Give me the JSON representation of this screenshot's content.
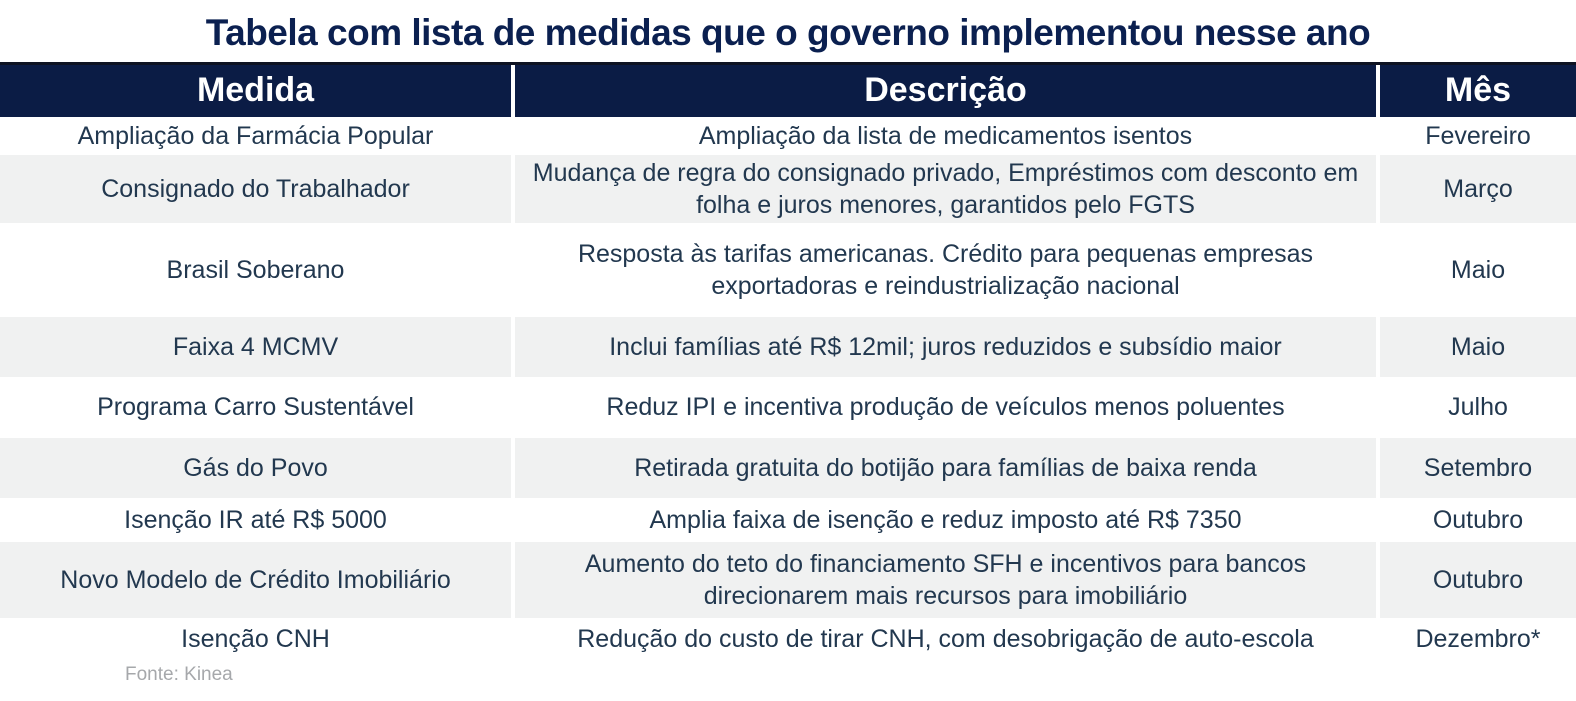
{
  "title": "Tabela com lista de medidas que o governo implementou nesse ano",
  "source": "Fonte: Kinea",
  "colors": {
    "header_bg": "#0B1C45",
    "header_text": "#FFFFFF",
    "row_alt_bg": "#F0F1F1",
    "body_text": "#22384F",
    "title_text": "#0B2050",
    "source_text": "#A6A8AB",
    "top_border": "#0E1322"
  },
  "table": {
    "columns": [
      {
        "key": "medida",
        "label": "Medida"
      },
      {
        "key": "descricao",
        "label": "Descrição"
      },
      {
        "key": "mes",
        "label": "Mês"
      }
    ],
    "rows": [
      {
        "medida": "Ampliação da Farmácia Popular",
        "descricao": "Ampliação da lista de medicamentos isentos",
        "mes": "Fevereiro"
      },
      {
        "medida": "Consignado do Trabalhador",
        "descricao": "Mudança de regra do consignado privado, Empréstimos com desconto em folha e juros menores, garantidos pelo FGTS",
        "mes": "Março"
      },
      {
        "medida": "Brasil Soberano",
        "descricao": "Resposta às tarifas americanas. Crédito para pequenas empresas exportadoras e reindustrialização nacional",
        "mes": "Maio"
      },
      {
        "medida": "Faixa 4 MCMV",
        "descricao": "Inclui famílias até R$ 12mil; juros reduzidos e subsídio maior",
        "mes": "Maio"
      },
      {
        "medida": "Programa Carro Sustentável",
        "descricao": "Reduz IPI e incentiva produção de veículos menos poluentes",
        "mes": "Julho"
      },
      {
        "medida": "Gás do Povo",
        "descricao": "Retirada gratuita do botijão para famílias de baixa renda",
        "mes": "Setembro"
      },
      {
        "medida": "Isenção IR até R$ 5000",
        "descricao": "Amplia faixa de isenção e reduz imposto até R$ 7350",
        "mes": "Outubro"
      },
      {
        "medida": "Novo Modelo de Crédito Imobiliário",
        "descricao": "Aumento do teto do financiamento SFH e incentivos para bancos direcionarem mais recursos para imobiliário",
        "mes": "Outubro"
      },
      {
        "medida": "Isenção CNH",
        "descricao": "Redução do custo de tirar CNH, com desobrigação de auto-escola",
        "mes": "Dezembro*"
      }
    ]
  }
}
